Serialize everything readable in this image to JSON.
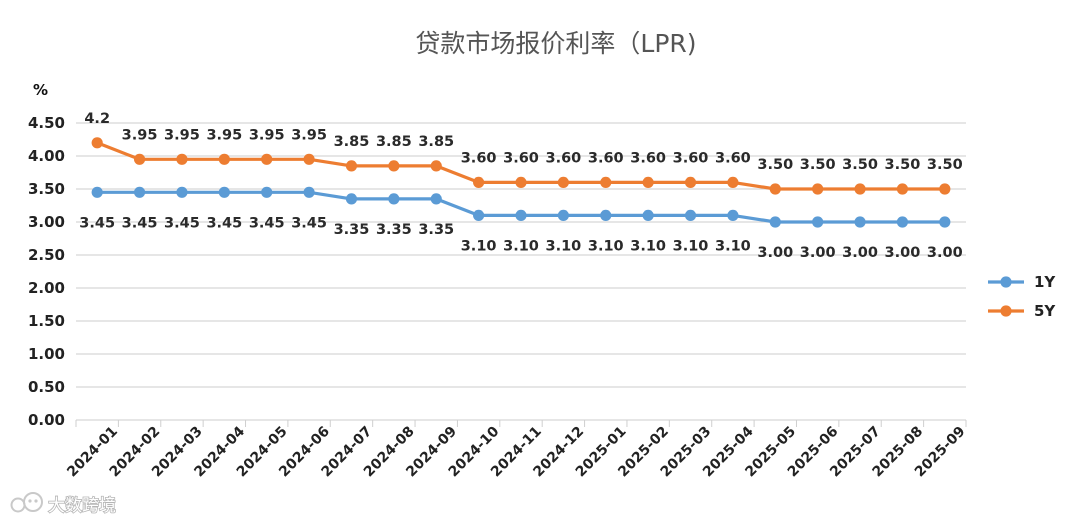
{
  "watermark": "大数跨境",
  "chart_data": {
    "type": "line",
    "title": "贷款市场报价利率（LPR)",
    "unit_label": "%",
    "xlabel": "",
    "ylabel": "%",
    "ylim": [
      0,
      4.5
    ],
    "yticks": [
      "0.00",
      "0.50",
      "1.00",
      "1.50",
      "2.00",
      "2.50",
      "3.00",
      "3.50",
      "4.00",
      "4.50"
    ],
    "grid": true,
    "legend_position": "right",
    "categories": [
      "2024-01",
      "2024-02",
      "2024-03",
      "2024-04",
      "2024-05",
      "2024-06",
      "2024-07",
      "2024-08",
      "2024-09",
      "2024-10",
      "2024-11",
      "2024-12",
      "2025-01",
      "2025-02",
      "2025-03",
      "2025-04",
      "2025-05",
      "2025-06",
      "2025-07",
      "2025-08",
      "2025-09"
    ],
    "series": [
      {
        "name": "1Y",
        "color": "#5b9bd5",
        "values": [
          3.45,
          3.45,
          3.45,
          3.45,
          3.45,
          3.45,
          3.35,
          3.35,
          3.35,
          3.1,
          3.1,
          3.1,
          3.1,
          3.1,
          3.1,
          3.1,
          3.0,
          3.0,
          3.0,
          3.0,
          3.0
        ],
        "labels": [
          "3.45",
          "3.45",
          "3.45",
          "3.45",
          "3.45",
          "3.45",
          "3.35",
          "3.35",
          "3.35",
          "3.10",
          "3.10",
          "3.10",
          "3.10",
          "3.10",
          "3.10",
          "3.10",
          "3.00",
          "3.00",
          "3.00",
          "3.00",
          "3.00"
        ]
      },
      {
        "name": "5Y",
        "color": "#ed7d31",
        "values": [
          4.2,
          3.95,
          3.95,
          3.95,
          3.95,
          3.95,
          3.85,
          3.85,
          3.85,
          3.6,
          3.6,
          3.6,
          3.6,
          3.6,
          3.6,
          3.6,
          3.5,
          3.5,
          3.5,
          3.5,
          3.5
        ],
        "labels": [
          "4.2",
          "3.95",
          "3.95",
          "3.95",
          "3.95",
          "3.95",
          "3.85",
          "3.85",
          "3.85",
          "3.60",
          "3.60",
          "3.60",
          "3.60",
          "3.60",
          "3.60",
          "3.60",
          "3.50",
          "3.50",
          "3.50",
          "3.50",
          "3.50"
        ]
      }
    ]
  }
}
